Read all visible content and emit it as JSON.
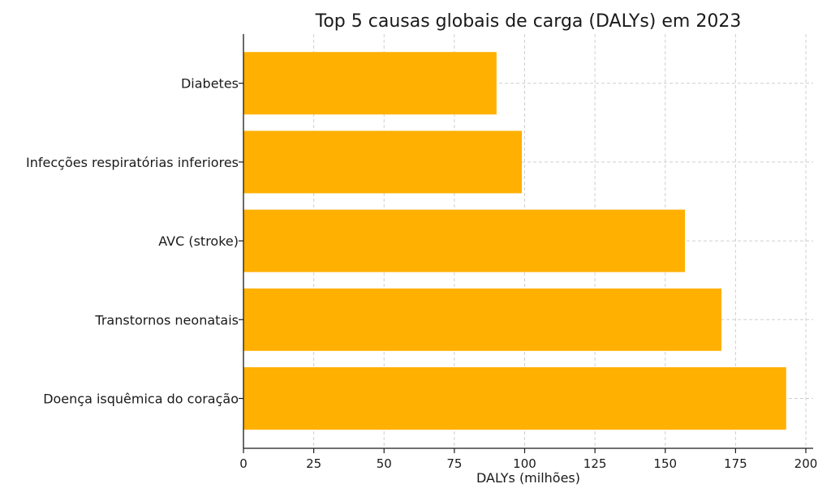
{
  "chart_data": {
    "type": "bar",
    "orientation": "horizontal",
    "title": "Top 5 causas globais de carga (DALYs) em 2023",
    "xlabel": "DALYs (milhões)",
    "ylabel": "",
    "categories": [
      "Doença isquêmica do coração",
      "Transtornos neonatais",
      "AVC (stroke)",
      "Infecções respiratórias inferiores",
      "Diabetes"
    ],
    "values": [
      193,
      170,
      157,
      99,
      90
    ],
    "xlim": [
      0,
      205
    ],
    "xticks": [
      0,
      25,
      50,
      75,
      100,
      125,
      150,
      175,
      200
    ],
    "grid": true,
    "bar_color": "#ffb000"
  }
}
